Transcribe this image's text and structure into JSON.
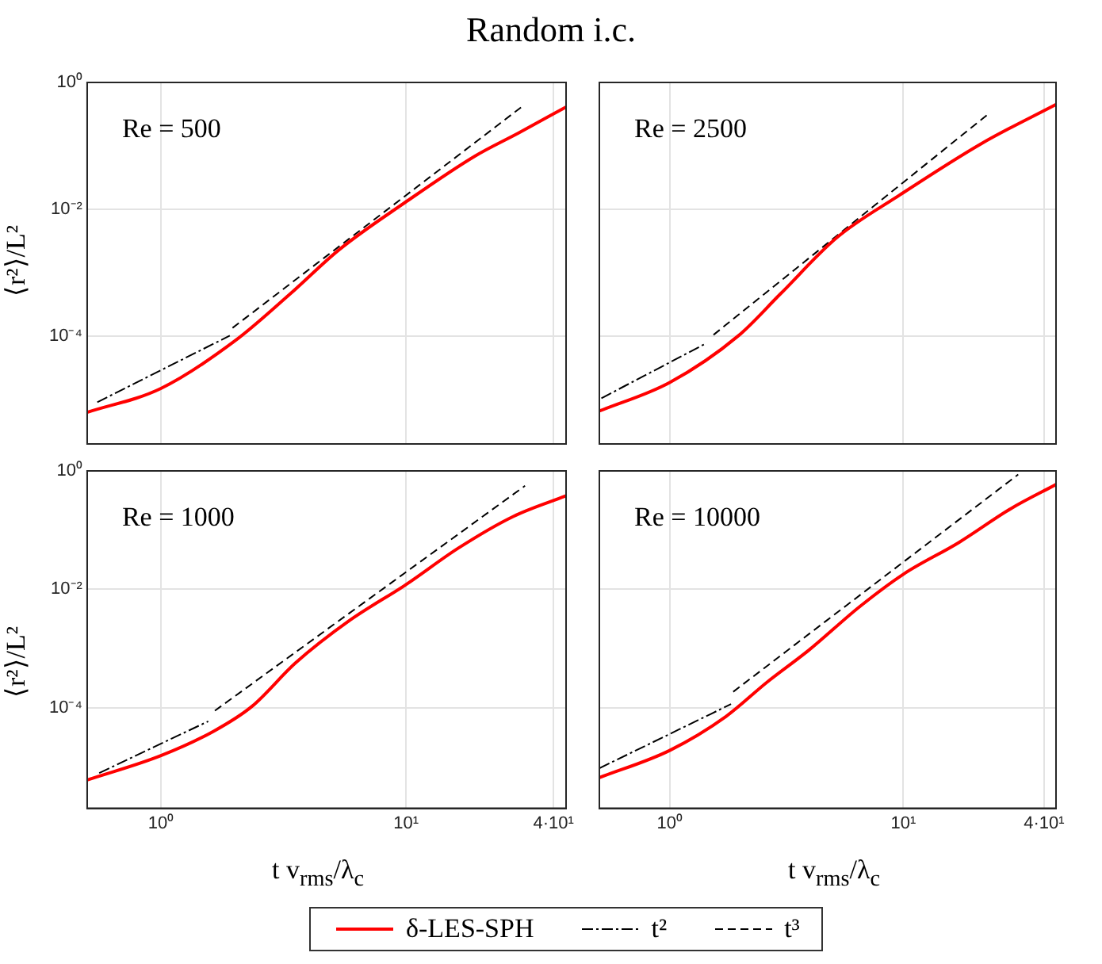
{
  "chart_data": [
    {
      "type": "line",
      "title": "Random i.c.",
      "ylabel": "⟨r²⟩/L²",
      "annotations": [
        "Re = 500"
      ],
      "xlim": [
        0.5,
        45
      ],
      "ylim": [
        2e-06,
        1
      ],
      "log": "xy",
      "grid": true,
      "marker": "none",
      "tick_labels": "y",
      "xticks": [
        {
          "value": 1,
          "label": null
        },
        {
          "value": 10,
          "label": null
        },
        {
          "value": 40,
          "label": null
        }
      ],
      "yticks": [
        {
          "value": 0.0001,
          "label": "10⁻⁴"
        },
        {
          "value": 0.01,
          "label": "10⁻²"
        },
        {
          "value": 1,
          "label": "10⁰"
        }
      ],
      "series": [
        {
          "color": "#ff0000",
          "line_style": "solid",
          "x": [
            0.5,
            1,
            2.01,
            3.36,
            5.33,
            9.85,
            19.1,
            28.8,
            45
          ],
          "values": [
            6.3e-06,
            1.5e-05,
            8.5e-05,
            0.00046,
            0.0023,
            0.0126,
            0.069,
            0.16,
            0.41
          ]
        },
        {
          "color": "#000000",
          "line_style": "dotted",
          "x": [
            0.55,
            1.91
          ],
          "values": [
            9.1e-06,
            0.000102
          ]
        },
        {
          "color": "#000000",
          "line_style": "dashed",
          "x": [
            1.96,
            29.6
          ],
          "values": [
            0.000135,
            0.41
          ]
        }
      ]
    },
    {
      "type": "line",
      "annotations": [
        "Re = 2500"
      ],
      "xlim": [
        0.5,
        45
      ],
      "ylim": [
        2e-06,
        1
      ],
      "log": "xy",
      "grid": true,
      "marker": "none",
      "tick_labels": false,
      "xticks": [
        {
          "value": 1,
          "label": null
        },
        {
          "value": 10,
          "label": null
        },
        {
          "value": 40,
          "label": null
        }
      ],
      "yticks": [
        {
          "value": 0.0001,
          "label": null
        },
        {
          "value": 0.01,
          "label": null
        },
        {
          "value": 1,
          "label": null
        }
      ],
      "series": [
        {
          "color": "#ff0000",
          "line_style": "solid",
          "x": [
            0.5,
            1,
            1.97,
            2.97,
            5.2,
            9.6,
            21.7,
            45
          ],
          "values": [
            6.6e-06,
            1.86e-05,
            0.000102,
            0.00046,
            0.0036,
            0.0166,
            0.11,
            0.45
          ]
        },
        {
          "color": "#000000",
          "line_style": "dotted",
          "x": [
            0.51,
            1.42
          ],
          "values": [
            1.05e-05,
            7.6e-05
          ]
        },
        {
          "color": "#000000",
          "line_style": "dashed",
          "x": [
            1.54,
            22.9
          ],
          "values": [
            0.000105,
            0.31
          ]
        }
      ]
    },
    {
      "type": "line",
      "ylabel": "⟨r²⟩/L²",
      "xlabel": "t v$_{rms}$/λ$_{c}$",
      "annotations": [
        "Re = 1000"
      ],
      "xlim": [
        0.5,
        45
      ],
      "ylim": [
        2e-06,
        1
      ],
      "log": "xy",
      "grid": true,
      "marker": "none",
      "xticks": [
        {
          "value": 1,
          "label": "10⁰"
        },
        {
          "value": 10,
          "label": "10¹"
        },
        {
          "value": 40,
          "label": "4·10¹"
        }
      ],
      "yticks": [
        {
          "value": 0.0001,
          "label": "10⁻⁴"
        },
        {
          "value": 0.01,
          "label": "10⁻²"
        },
        {
          "value": 1,
          "label": "10⁰"
        }
      ],
      "series": [
        {
          "color": "#ff0000",
          "line_style": "solid",
          "x": [
            0.5,
            1,
            1.64,
            2.35,
            3.54,
            5.9,
            10,
            16.4,
            27.4,
            45
          ],
          "values": [
            6e-06,
            1.55e-05,
            4e-05,
            0.000105,
            0.00057,
            0.003,
            0.012,
            0.05,
            0.17,
            0.38
          ]
        },
        {
          "color": "#000000",
          "line_style": "dotted",
          "x": [
            0.56,
            1.56
          ],
          "values": [
            7.9e-06,
            5.9e-05
          ]
        },
        {
          "color": "#000000",
          "line_style": "dashed",
          "x": [
            1.66,
            30.6
          ],
          "values": [
            8.9e-05,
            0.56
          ]
        }
      ]
    },
    {
      "type": "line",
      "xlabel": "t v$_{rms}$/λ$_{c}$",
      "annotations": [
        "Re = 10000"
      ],
      "xlim": [
        0.5,
        45
      ],
      "ylim": [
        2e-06,
        1
      ],
      "log": "xy",
      "grid": true,
      "marker": "none",
      "tick_labels": "x",
      "legend": "bottom",
      "xticks": [
        {
          "value": 1,
          "label": "10⁰"
        },
        {
          "value": 10,
          "label": "10¹"
        },
        {
          "value": 40,
          "label": "4·10¹"
        }
      ],
      "yticks": [
        {
          "value": 0.0001,
          "label": null
        },
        {
          "value": 0.01,
          "label": null
        },
        {
          "value": 1,
          "label": null
        }
      ],
      "series": [
        {
          "name": "δ-LES-SPH",
          "color": "#ff0000",
          "line_style": "solid",
          "x": [
            0.5,
            1,
            1.74,
            2.61,
            3.93,
            6.5,
            10,
            17.3,
            28.8,
            45
          ],
          "values": [
            6.6e-06,
            1.9e-05,
            7.1e-05,
            0.00027,
            0.00093,
            0.0051,
            0.018,
            0.062,
            0.23,
            0.59
          ]
        },
        {
          "name": "t²",
          "color": "#000000",
          "line_style": "dotted",
          "x": [
            0.5,
            1.83
          ],
          "values": [
            9.5e-06,
            0.000115
          ]
        },
        {
          "name": "t³",
          "color": "#000000",
          "line_style": "dashed",
          "x": [
            1.87,
            31
          ],
          "values": [
            0.000186,
            0.87
          ]
        }
      ]
    }
  ]
}
